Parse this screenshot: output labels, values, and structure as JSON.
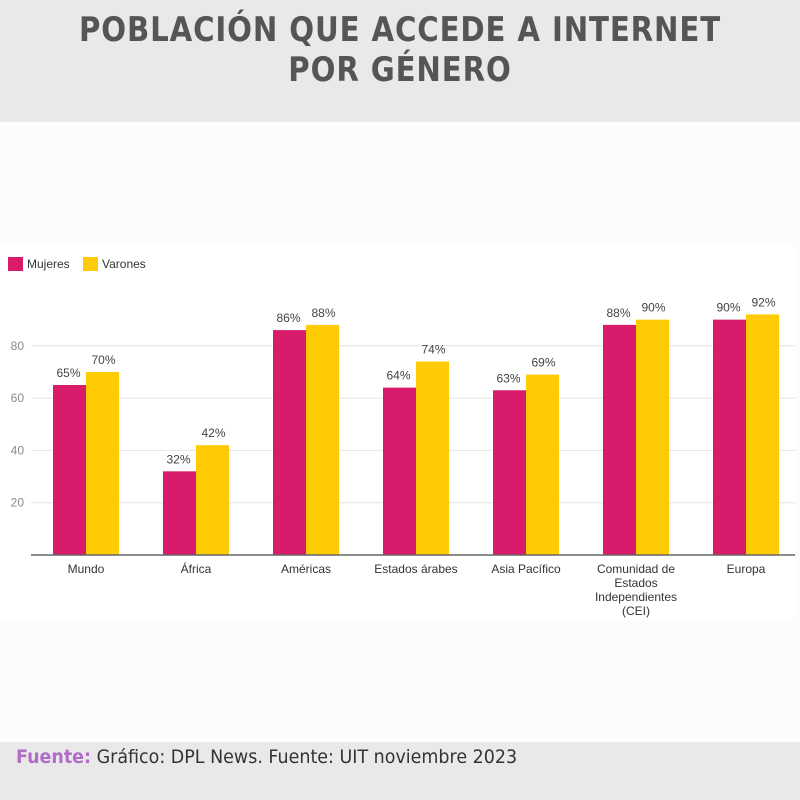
{
  "header": {
    "title": "POBLACIÓN QUE ACCEDE A INTERNET POR GÉNERO"
  },
  "footer": {
    "label": "Fuente:",
    "text": "Gráfico: DPL News. Fuente: UIT noviembre 2023"
  },
  "chart_data": {
    "type": "bar",
    "title": "POBLACIÓN QUE ACCEDE A INTERNET POR GÉNERO",
    "xlabel": "",
    "ylabel": "",
    "categories": [
      [
        "Mundo"
      ],
      [
        "África"
      ],
      [
        "Américas"
      ],
      [
        "Estados árabes"
      ],
      [
        "Asia Pacífico"
      ],
      [
        "Comunidad de",
        "Estados",
        "Independientes",
        "(CEI)"
      ],
      [
        "Europa"
      ]
    ],
    "series": [
      {
        "name": "Mujeres",
        "color": "#d81b6a",
        "values": [
          65,
          32,
          86,
          64,
          63,
          88,
          90
        ]
      },
      {
        "name": "Varones",
        "color": "#ffcb05",
        "values": [
          70,
          42,
          88,
          74,
          69,
          90,
          92
        ]
      }
    ],
    "value_suffix": "%",
    "yticks": [
      20,
      40,
      60,
      80
    ],
    "ylim": [
      0,
      100
    ],
    "grid": true,
    "legend": "top-left"
  }
}
